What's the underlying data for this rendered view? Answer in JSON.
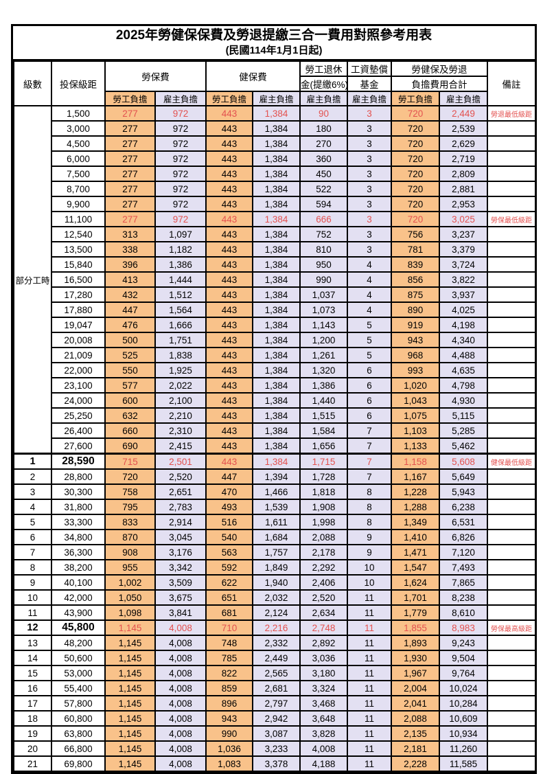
{
  "title": "2025年勞健保保費及勞退提繳三合一費用對照參考用表",
  "subtitle": "(民國114年1月1日起)",
  "colors": {
    "employee_bg": "#f9c28a",
    "employer_bg": "#e3e0f2",
    "highlight_red": "#e3514f",
    "border": "#000000"
  },
  "header": {
    "level": "級數",
    "bracket": "投保級距",
    "labor_ins": "勞保費",
    "health_ins": "健保費",
    "pension_line1": "勞工退休",
    "pension_line2": "金(提繳6%)",
    "wage_fund_line1": "工資墊償",
    "wage_fund_line2": "基金",
    "total_line1": "勞健保及勞退",
    "total_line2": "負擔費用合計",
    "remark": "備註",
    "employee": "勞工負擔",
    "employer": "雇主負擔"
  },
  "part_time_label": "部分工時",
  "part_time_rowspan": 23,
  "rows": [
    {
      "level": "",
      "bracket": "1,500",
      "labor_emp": "277",
      "labor_er": "972",
      "health_emp": "443",
      "health_er": "1,384",
      "pension": "90",
      "wage_fund": "3",
      "total_emp": "720",
      "total_er": "2,449",
      "remark": "勞退最低級距",
      "red": true
    },
    {
      "level": "",
      "bracket": "3,000",
      "labor_emp": "277",
      "labor_er": "972",
      "health_emp": "443",
      "health_er": "1,384",
      "pension": "180",
      "wage_fund": "3",
      "total_emp": "720",
      "total_er": "2,539",
      "remark": ""
    },
    {
      "level": "",
      "bracket": "4,500",
      "labor_emp": "277",
      "labor_er": "972",
      "health_emp": "443",
      "health_er": "1,384",
      "pension": "270",
      "wage_fund": "3",
      "total_emp": "720",
      "total_er": "2,629",
      "remark": ""
    },
    {
      "level": "",
      "bracket": "6,000",
      "labor_emp": "277",
      "labor_er": "972",
      "health_emp": "443",
      "health_er": "1,384",
      "pension": "360",
      "wage_fund": "3",
      "total_emp": "720",
      "total_er": "2,719",
      "remark": ""
    },
    {
      "level": "",
      "bracket": "7,500",
      "labor_emp": "277",
      "labor_er": "972",
      "health_emp": "443",
      "health_er": "1,384",
      "pension": "450",
      "wage_fund": "3",
      "total_emp": "720",
      "total_er": "2,809",
      "remark": ""
    },
    {
      "level": "",
      "bracket": "8,700",
      "labor_emp": "277",
      "labor_er": "972",
      "health_emp": "443",
      "health_er": "1,384",
      "pension": "522",
      "wage_fund": "3",
      "total_emp": "720",
      "total_er": "2,881",
      "remark": ""
    },
    {
      "level": "",
      "bracket": "9,900",
      "labor_emp": "277",
      "labor_er": "972",
      "health_emp": "443",
      "health_er": "1,384",
      "pension": "594",
      "wage_fund": "3",
      "total_emp": "720",
      "total_er": "2,953",
      "remark": ""
    },
    {
      "level": "",
      "bracket": "11,100",
      "labor_emp": "277",
      "labor_er": "972",
      "health_emp": "443",
      "health_er": "1,384",
      "pension": "666",
      "wage_fund": "3",
      "total_emp": "720",
      "total_er": "3,025",
      "remark": "勞保最低級距",
      "red": true
    },
    {
      "level": "",
      "bracket": "12,540",
      "labor_emp": "313",
      "labor_er": "1,097",
      "health_emp": "443",
      "health_er": "1,384",
      "pension": "752",
      "wage_fund": "3",
      "total_emp": "756",
      "total_er": "3,237",
      "remark": ""
    },
    {
      "level": "",
      "bracket": "13,500",
      "labor_emp": "338",
      "labor_er": "1,182",
      "health_emp": "443",
      "health_er": "1,384",
      "pension": "810",
      "wage_fund": "3",
      "total_emp": "781",
      "total_er": "3,379",
      "remark": ""
    },
    {
      "level": "",
      "bracket": "15,840",
      "labor_emp": "396",
      "labor_er": "1,386",
      "health_emp": "443",
      "health_er": "1,384",
      "pension": "950",
      "wage_fund": "4",
      "total_emp": "839",
      "total_er": "3,724",
      "remark": ""
    },
    {
      "level": "",
      "bracket": "16,500",
      "labor_emp": "413",
      "labor_er": "1,444",
      "health_emp": "443",
      "health_er": "1,384",
      "pension": "990",
      "wage_fund": "4",
      "total_emp": "856",
      "total_er": "3,822",
      "remark": ""
    },
    {
      "level": "",
      "bracket": "17,280",
      "labor_emp": "432",
      "labor_er": "1,512",
      "health_emp": "443",
      "health_er": "1,384",
      "pension": "1,037",
      "wage_fund": "4",
      "total_emp": "875",
      "total_er": "3,937",
      "remark": ""
    },
    {
      "level": "",
      "bracket": "17,880",
      "labor_emp": "447",
      "labor_er": "1,564",
      "health_emp": "443",
      "health_er": "1,384",
      "pension": "1,073",
      "wage_fund": "4",
      "total_emp": "890",
      "total_er": "4,025",
      "remark": ""
    },
    {
      "level": "",
      "bracket": "19,047",
      "labor_emp": "476",
      "labor_er": "1,666",
      "health_emp": "443",
      "health_er": "1,384",
      "pension": "1,143",
      "wage_fund": "5",
      "total_emp": "919",
      "total_er": "4,198",
      "remark": ""
    },
    {
      "level": "",
      "bracket": "20,008",
      "labor_emp": "500",
      "labor_er": "1,751",
      "health_emp": "443",
      "health_er": "1,384",
      "pension": "1,200",
      "wage_fund": "5",
      "total_emp": "943",
      "total_er": "4,340",
      "remark": ""
    },
    {
      "level": "",
      "bracket": "21,009",
      "labor_emp": "525",
      "labor_er": "1,838",
      "health_emp": "443",
      "health_er": "1,384",
      "pension": "1,261",
      "wage_fund": "5",
      "total_emp": "968",
      "total_er": "4,488",
      "remark": ""
    },
    {
      "level": "",
      "bracket": "22,000",
      "labor_emp": "550",
      "labor_er": "1,925",
      "health_emp": "443",
      "health_er": "1,384",
      "pension": "1,320",
      "wage_fund": "6",
      "total_emp": "993",
      "total_er": "4,635",
      "remark": ""
    },
    {
      "level": "",
      "bracket": "23,100",
      "labor_emp": "577",
      "labor_er": "2,022",
      "health_emp": "443",
      "health_er": "1,384",
      "pension": "1,386",
      "wage_fund": "6",
      "total_emp": "1,020",
      "total_er": "4,798",
      "remark": ""
    },
    {
      "level": "",
      "bracket": "24,000",
      "labor_emp": "600",
      "labor_er": "2,100",
      "health_emp": "443",
      "health_er": "1,384",
      "pension": "1,440",
      "wage_fund": "6",
      "total_emp": "1,043",
      "total_er": "4,930",
      "remark": ""
    },
    {
      "level": "",
      "bracket": "25,250",
      "labor_emp": "632",
      "labor_er": "2,210",
      "health_emp": "443",
      "health_er": "1,384",
      "pension": "1,515",
      "wage_fund": "6",
      "total_emp": "1,075",
      "total_er": "5,115",
      "remark": ""
    },
    {
      "level": "",
      "bracket": "26,400",
      "labor_emp": "660",
      "labor_er": "2,310",
      "health_emp": "443",
      "health_er": "1,384",
      "pension": "1,584",
      "wage_fund": "7",
      "total_emp": "1,103",
      "total_er": "5,285",
      "remark": ""
    },
    {
      "level": "",
      "bracket": "27,600",
      "labor_emp": "690",
      "labor_er": "2,415",
      "health_emp": "443",
      "health_er": "1,384",
      "pension": "1,656",
      "wage_fund": "7",
      "total_emp": "1,133",
      "total_er": "5,462",
      "remark": ""
    },
    {
      "level": "1",
      "bracket": "28,590",
      "labor_emp": "715",
      "labor_er": "2,501",
      "health_emp": "443",
      "health_er": "1,384",
      "pension": "1,715",
      "wage_fund": "7",
      "total_emp": "1,158",
      "total_er": "5,608",
      "remark": "健保最低級距",
      "red": true,
      "bold": true,
      "sep": true
    },
    {
      "level": "2",
      "bracket": "28,800",
      "labor_emp": "720",
      "labor_er": "2,520",
      "health_emp": "447",
      "health_er": "1,394",
      "pension": "1,728",
      "wage_fund": "7",
      "total_emp": "1,167",
      "total_er": "5,649",
      "remark": ""
    },
    {
      "level": "3",
      "bracket": "30,300",
      "labor_emp": "758",
      "labor_er": "2,651",
      "health_emp": "470",
      "health_er": "1,466",
      "pension": "1,818",
      "wage_fund": "8",
      "total_emp": "1,228",
      "total_er": "5,943",
      "remark": ""
    },
    {
      "level": "4",
      "bracket": "31,800",
      "labor_emp": "795",
      "labor_er": "2,783",
      "health_emp": "493",
      "health_er": "1,539",
      "pension": "1,908",
      "wage_fund": "8",
      "total_emp": "1,288",
      "total_er": "6,238",
      "remark": ""
    },
    {
      "level": "5",
      "bracket": "33,300",
      "labor_emp": "833",
      "labor_er": "2,914",
      "health_emp": "516",
      "health_er": "1,611",
      "pension": "1,998",
      "wage_fund": "8",
      "total_emp": "1,349",
      "total_er": "6,531",
      "remark": ""
    },
    {
      "level": "6",
      "bracket": "34,800",
      "labor_emp": "870",
      "labor_er": "3,045",
      "health_emp": "540",
      "health_er": "1,684",
      "pension": "2,088",
      "wage_fund": "9",
      "total_emp": "1,410",
      "total_er": "6,826",
      "remark": ""
    },
    {
      "level": "7",
      "bracket": "36,300",
      "labor_emp": "908",
      "labor_er": "3,176",
      "health_emp": "563",
      "health_er": "1,757",
      "pension": "2,178",
      "wage_fund": "9",
      "total_emp": "1,471",
      "total_er": "7,120",
      "remark": ""
    },
    {
      "level": "8",
      "bracket": "38,200",
      "labor_emp": "955",
      "labor_er": "3,342",
      "health_emp": "592",
      "health_er": "1,849",
      "pension": "2,292",
      "wage_fund": "10",
      "total_emp": "1,547",
      "total_er": "7,493",
      "remark": ""
    },
    {
      "level": "9",
      "bracket": "40,100",
      "labor_emp": "1,002",
      "labor_er": "3,509",
      "health_emp": "622",
      "health_er": "1,940",
      "pension": "2,406",
      "wage_fund": "10",
      "total_emp": "1,624",
      "total_er": "7,865",
      "remark": ""
    },
    {
      "level": "10",
      "bracket": "42,000",
      "labor_emp": "1,050",
      "labor_er": "3,675",
      "health_emp": "651",
      "health_er": "2,032",
      "pension": "2,520",
      "wage_fund": "11",
      "total_emp": "1,701",
      "total_er": "8,238",
      "remark": ""
    },
    {
      "level": "11",
      "bracket": "43,900",
      "labor_emp": "1,098",
      "labor_er": "3,841",
      "health_emp": "681",
      "health_er": "2,124",
      "pension": "2,634",
      "wage_fund": "11",
      "total_emp": "1,779",
      "total_er": "8,610",
      "remark": ""
    },
    {
      "level": "12",
      "bracket": "45,800",
      "labor_emp": "1,145",
      "labor_er": "4,008",
      "health_emp": "710",
      "health_er": "2,216",
      "pension": "2,748",
      "wage_fund": "11",
      "total_emp": "1,855",
      "total_er": "8,983",
      "remark": "勞保最高級距",
      "red": true,
      "bold": true
    },
    {
      "level": "13",
      "bracket": "48,200",
      "labor_emp": "1,145",
      "labor_er": "4,008",
      "health_emp": "748",
      "health_er": "2,332",
      "pension": "2,892",
      "wage_fund": "11",
      "total_emp": "1,893",
      "total_er": "9,243",
      "remark": ""
    },
    {
      "level": "14",
      "bracket": "50,600",
      "labor_emp": "1,145",
      "labor_er": "4,008",
      "health_emp": "785",
      "health_er": "2,449",
      "pension": "3,036",
      "wage_fund": "11",
      "total_emp": "1,930",
      "total_er": "9,504",
      "remark": ""
    },
    {
      "level": "15",
      "bracket": "53,000",
      "labor_emp": "1,145",
      "labor_er": "4,008",
      "health_emp": "822",
      "health_er": "2,565",
      "pension": "3,180",
      "wage_fund": "11",
      "total_emp": "1,967",
      "total_er": "9,764",
      "remark": ""
    },
    {
      "level": "16",
      "bracket": "55,400",
      "labor_emp": "1,145",
      "labor_er": "4,008",
      "health_emp": "859",
      "health_er": "2,681",
      "pension": "3,324",
      "wage_fund": "11",
      "total_emp": "2,004",
      "total_er": "10,024",
      "remark": ""
    },
    {
      "level": "17",
      "bracket": "57,800",
      "labor_emp": "1,145",
      "labor_er": "4,008",
      "health_emp": "896",
      "health_er": "2,797",
      "pension": "3,468",
      "wage_fund": "11",
      "total_emp": "2,041",
      "total_er": "10,284",
      "remark": ""
    },
    {
      "level": "18",
      "bracket": "60,800",
      "labor_emp": "1,145",
      "labor_er": "4,008",
      "health_emp": "943",
      "health_er": "2,942",
      "pension": "3,648",
      "wage_fund": "11",
      "total_emp": "2,088",
      "total_er": "10,609",
      "remark": ""
    },
    {
      "level": "19",
      "bracket": "63,800",
      "labor_emp": "1,145",
      "labor_er": "4,008",
      "health_emp": "990",
      "health_er": "3,087",
      "pension": "3,828",
      "wage_fund": "11",
      "total_emp": "2,135",
      "total_er": "10,934",
      "remark": ""
    },
    {
      "level": "20",
      "bracket": "66,800",
      "labor_emp": "1,145",
      "labor_er": "4,008",
      "health_emp": "1,036",
      "health_er": "3,233",
      "pension": "4,008",
      "wage_fund": "11",
      "total_emp": "2,181",
      "total_er": "11,260",
      "remark": ""
    },
    {
      "level": "21",
      "bracket": "69,800",
      "labor_emp": "1,145",
      "labor_er": "4,008",
      "health_emp": "1,083",
      "health_er": "3,378",
      "pension": "4,188",
      "wage_fund": "11",
      "total_emp": "2,228",
      "total_er": "11,585",
      "remark": ""
    }
  ]
}
